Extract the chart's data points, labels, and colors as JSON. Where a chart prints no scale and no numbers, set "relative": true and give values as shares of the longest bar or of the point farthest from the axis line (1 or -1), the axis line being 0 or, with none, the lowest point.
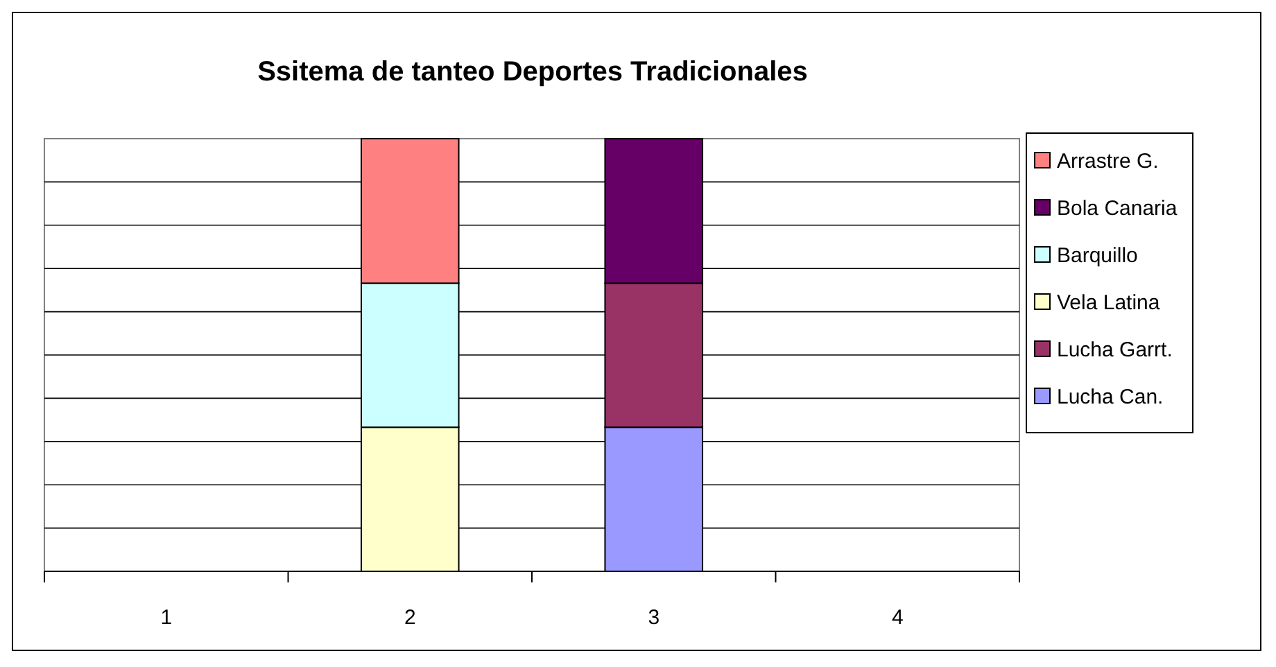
{
  "chart_data": {
    "type": "bar",
    "title": "Ssitema de tanteo Deportes Tradicionales",
    "categories": [
      "1",
      "2",
      "3",
      "4"
    ],
    "stacked": true,
    "relative": true,
    "grid": "y",
    "legend": "right",
    "series": [
      {
        "name": "Lucha Can.",
        "color": "#9999ff",
        "values": [
          null,
          null,
          0.333,
          null
        ]
      },
      {
        "name": "Lucha Garrt.",
        "color": "#993366",
        "values": [
          null,
          null,
          0.333,
          null
        ]
      },
      {
        "name": "Vela Latina",
        "color": "#ffffcc",
        "values": [
          null,
          0.333,
          null,
          null
        ]
      },
      {
        "name": "Barquillo",
        "color": "#ccffff",
        "values": [
          null,
          0.333,
          null,
          null
        ]
      },
      {
        "name": "Bola Canaria",
        "color": "#660066",
        "values": [
          null,
          null,
          0.334,
          null
        ]
      },
      {
        "name": "Arrastre G.",
        "color": "#ff8080",
        "values": [
          null,
          0.334,
          null,
          null
        ]
      }
    ]
  }
}
